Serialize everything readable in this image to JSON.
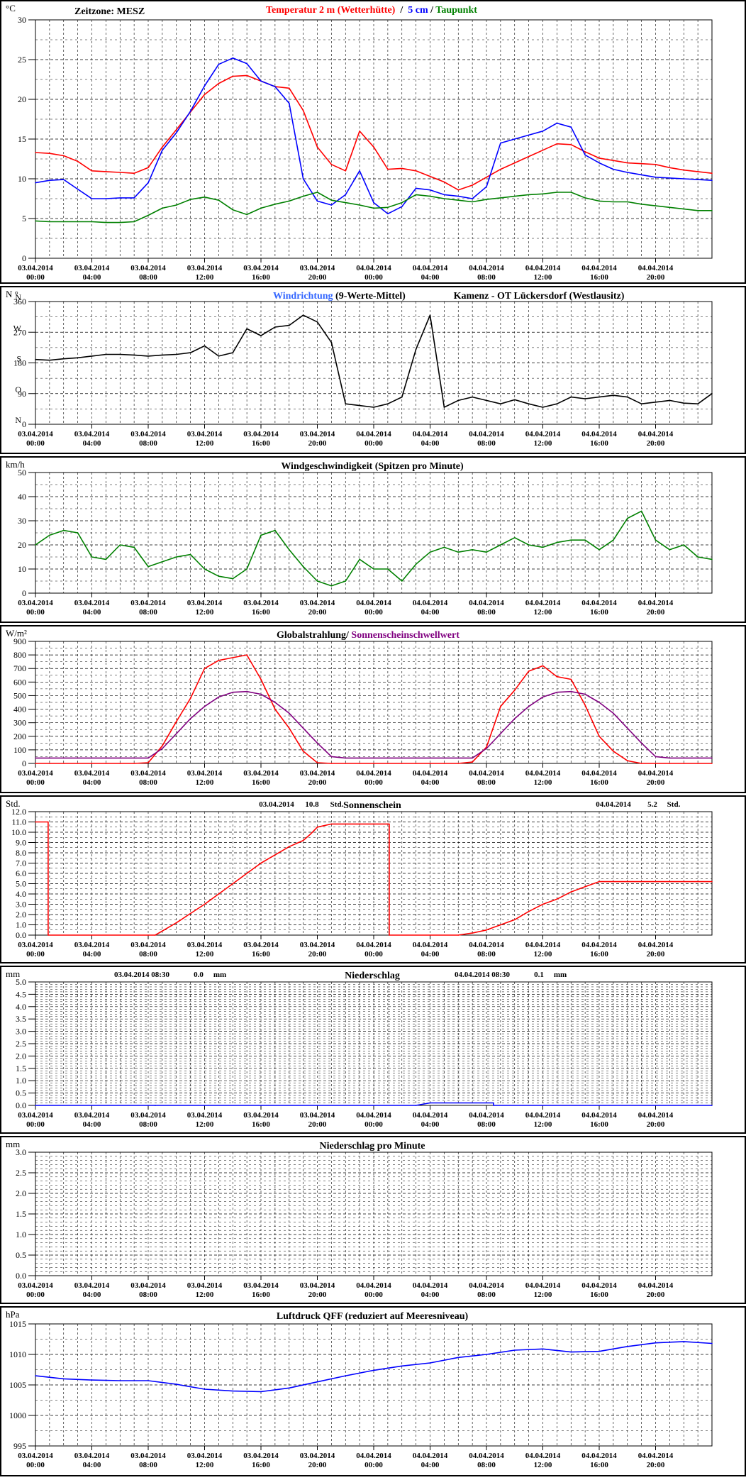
{
  "colors": {
    "temp2m": "#ff0000",
    "temp5cm": "#0000ff",
    "dewpoint": "#008000",
    "wind_dir_avg": "#0000ff",
    "wind_dir_raw": "#3399ff",
    "wind_dir_mean": "#000000",
    "wind_speed": "#008000",
    "radiation": "#ff0000",
    "sunshine_threshold": "#800080",
    "sunshine": "#ff0000",
    "precip": "#0000ff",
    "pressure": "#0000ff",
    "grid": "#000000",
    "frame": "#000000"
  },
  "x_axis": {
    "tick_labels": [
      {
        "date": "03.04.2014",
        "time": "00:00"
      },
      {
        "date": "03.04.2014",
        "time": "04:00"
      },
      {
        "date": "03.04.2014",
        "time": "08:00"
      },
      {
        "date": "03.04.2014",
        "time": "12:00"
      },
      {
        "date": "03.04.2014",
        "time": "16:00"
      },
      {
        "date": "03.04.2014",
        "time": "20:00"
      },
      {
        "date": "04.04.2014",
        "time": "00:00"
      },
      {
        "date": "04.04.2014",
        "time": "04:00"
      },
      {
        "date": "04.04.2014",
        "time": "08:00"
      },
      {
        "date": "04.04.2014",
        "time": "12:00"
      },
      {
        "date": "04.04.2014",
        "time": "16:00"
      },
      {
        "date": "04.04.2014",
        "time": "20:00"
      }
    ]
  },
  "chart_data": [
    {
      "id": "temp",
      "type": "line",
      "unit": "°C",
      "header_left": "Zeitzone: MESZ",
      "title_parts": [
        {
          "text": "Temperatur 2 m (Wetterhütte)",
          "color": "#ff0000"
        },
        {
          "text": "  /  ",
          "color": "#000000"
        },
        {
          "text": "5 cm",
          "color": "#0000ff"
        },
        {
          "text": " / ",
          "color": "#000000"
        },
        {
          "text": "Taupunkt",
          "color": "#008000"
        }
      ],
      "ylim": [
        0,
        30
      ],
      "y_ticks": [
        0,
        5,
        10,
        15,
        20,
        25,
        30
      ],
      "grid": true,
      "x_hours": [
        0,
        1,
        2,
        3,
        4,
        5,
        6,
        7,
        8,
        9,
        10,
        11,
        12,
        13,
        14,
        15,
        16,
        17,
        18,
        19,
        20,
        21,
        22,
        23,
        24,
        25,
        26,
        27,
        28,
        29,
        30,
        31,
        32,
        33,
        34,
        35,
        36,
        37,
        38,
        39,
        40,
        41,
        42,
        43,
        44,
        45,
        46,
        47,
        48
      ],
      "series": [
        {
          "name": "Temperatur 2 m (Wetterhütte)",
          "color": "#ff0000",
          "values": [
            13.3,
            13.2,
            12.9,
            12.2,
            11.0,
            10.9,
            10.8,
            10.7,
            11.4,
            14.0,
            16.2,
            18.4,
            20.6,
            22.0,
            22.9,
            23.0,
            22.3,
            21.6,
            21.4,
            18.6,
            14.0,
            11.8,
            11.0,
            16.0,
            14.0,
            11.2,
            11.3,
            11.0,
            10.3,
            9.6,
            8.6,
            9.2,
            10.2,
            11.2,
            12.0,
            12.8,
            13.6,
            14.4,
            14.3,
            13.4,
            12.6,
            12.3,
            12.0,
            11.9,
            11.8,
            11.4,
            11.1,
            10.9,
            10.7
          ]
        },
        {
          "name": "5 cm",
          "color": "#0000ff",
          "values": [
            9.5,
            9.8,
            9.9,
            8.7,
            7.5,
            7.5,
            7.6,
            7.6,
            9.5,
            13.6,
            15.8,
            18.5,
            21.7,
            24.4,
            25.2,
            24.5,
            22.3,
            21.6,
            19.5,
            10.0,
            7.2,
            6.7,
            8.0,
            11.0,
            7.0,
            5.6,
            6.5,
            8.8,
            8.6,
            8.0,
            7.8,
            7.5,
            9.0,
            14.5,
            15.0,
            15.5,
            16.0,
            17.0,
            16.5,
            13.0,
            12.0,
            11.2,
            10.8,
            10.5,
            10.2,
            10.1,
            10.0,
            9.9,
            9.8
          ]
        },
        {
          "name": "Taupunkt",
          "color": "#008000",
          "values": [
            4.7,
            4.6,
            4.6,
            4.6,
            4.6,
            4.5,
            4.5,
            4.6,
            5.4,
            6.3,
            6.7,
            7.4,
            7.7,
            7.3,
            6.1,
            5.5,
            6.3,
            6.8,
            7.2,
            7.8,
            8.3,
            7.3,
            7.0,
            6.7,
            6.3,
            6.4,
            7.0,
            8.0,
            7.8,
            7.5,
            7.3,
            7.1,
            7.4,
            7.6,
            7.8,
            8.0,
            8.1,
            8.3,
            8.3,
            7.6,
            7.2,
            7.1,
            7.1,
            6.8,
            6.6,
            6.4,
            6.2,
            6.0,
            6.0
          ]
        }
      ]
    },
    {
      "id": "winddir",
      "type": "line",
      "unit": "N °",
      "title_parts": [
        {
          "text": "Windrichtung",
          "color": "#3366ff"
        },
        {
          "text": " (9-Werte-Mittel)",
          "color": "#000000"
        }
      ],
      "subtitle": "Kamenz - OT Lückersdorf (Westlausitz)",
      "ylim": [
        0,
        360
      ],
      "y_ticks": [
        0,
        90,
        180,
        270,
        360
      ],
      "y_letters": [
        {
          "value": 360,
          "text": "N"
        },
        {
          "value": 270,
          "text": "W"
        },
        {
          "value": 180,
          "text": "S"
        },
        {
          "value": 90,
          "text": "O"
        },
        {
          "value": 0,
          "text": "N"
        }
      ],
      "grid": true,
      "x_hours": [
        0,
        1,
        2,
        3,
        4,
        5,
        6,
        7,
        8,
        9,
        10,
        11,
        12,
        13,
        14,
        15,
        16,
        17,
        18,
        19,
        20,
        21,
        22,
        23,
        24,
        25,
        26,
        27,
        28,
        29,
        30,
        31,
        32,
        33,
        34,
        35,
        36,
        37,
        38,
        39,
        40,
        41,
        42,
        43,
        44,
        45,
        46,
        47,
        48
      ],
      "series": [
        {
          "name": "Windrichtung",
          "color": "#000000",
          "values": [
            190,
            188,
            192,
            195,
            200,
            205,
            205,
            203,
            200,
            203,
            205,
            210,
            230,
            200,
            210,
            280,
            260,
            285,
            290,
            320,
            300,
            240,
            60,
            55,
            50,
            60,
            80,
            220,
            320,
            50,
            70,
            80,
            70,
            60,
            72,
            60,
            50,
            60,
            80,
            75,
            80,
            85,
            80,
            60,
            65,
            70,
            62,
            60,
            90
          ]
        }
      ]
    },
    {
      "id": "windspeed",
      "type": "line",
      "unit": "km/h",
      "title": "Windgeschwindigkeit (Spitzen pro Minute)",
      "ylim": [
        0,
        50
      ],
      "y_ticks": [
        0,
        10,
        20,
        30,
        40,
        50
      ],
      "grid": true,
      "x_hours": [
        0,
        1,
        2,
        3,
        4,
        5,
        6,
        7,
        8,
        9,
        10,
        11,
        12,
        13,
        14,
        15,
        16,
        17,
        18,
        19,
        20,
        21,
        22,
        23,
        24,
        25,
        26,
        27,
        28,
        29,
        30,
        31,
        32,
        33,
        34,
        35,
        36,
        37,
        38,
        39,
        40,
        41,
        42,
        43,
        44,
        45,
        46,
        47,
        48
      ],
      "series": [
        {
          "name": "Windgeschwindigkeit",
          "color": "#008000",
          "values": [
            20,
            24,
            26,
            25,
            15,
            14,
            20,
            19,
            11,
            13,
            15,
            16,
            10,
            7,
            6,
            10,
            24,
            26,
            18,
            11,
            5,
            3,
            5,
            14,
            10,
            10,
            5,
            12,
            17,
            19,
            17,
            18,
            17,
            20,
            23,
            20,
            19,
            21,
            22,
            22,
            18,
            22,
            31,
            34,
            22,
            18,
            20,
            15,
            14
          ]
        }
      ]
    },
    {
      "id": "radiation",
      "type": "line",
      "unit": "W/m²",
      "title_parts": [
        {
          "text": "Globalstrahlung/ ",
          "color": "#000000"
        },
        {
          "text": "Sonnenscheinschwellwert",
          "color": "#800080"
        }
      ],
      "ylim": [
        0,
        900
      ],
      "y_ticks": [
        0,
        100,
        200,
        300,
        400,
        500,
        600,
        700,
        800,
        900
      ],
      "grid": true,
      "x_hours": [
        0,
        1,
        2,
        3,
        4,
        5,
        6,
        7,
        8,
        9,
        10,
        11,
        12,
        13,
        14,
        15,
        16,
        17,
        18,
        19,
        20,
        21,
        22,
        23,
        24,
        25,
        26,
        27,
        28,
        29,
        30,
        31,
        32,
        33,
        34,
        35,
        36,
        37,
        38,
        39,
        40,
        41,
        42,
        43,
        44,
        45,
        46,
        47,
        48
      ],
      "series": [
        {
          "name": "Globalstrahlung",
          "color": "#ff0000",
          "values": [
            0,
            0,
            0,
            0,
            0,
            0,
            0,
            0,
            5,
            130,
            310,
            480,
            700,
            760,
            780,
            800,
            620,
            400,
            260,
            90,
            5,
            0,
            0,
            0,
            0,
            0,
            0,
            0,
            0,
            0,
            0,
            10,
            120,
            420,
            540,
            680,
            720,
            640,
            620,
            430,
            200,
            90,
            20,
            0,
            0,
            0,
            0,
            0,
            0
          ]
        },
        {
          "name": "Sonnenscheinschwellwert",
          "color": "#800080",
          "values": [
            40,
            40,
            40,
            40,
            40,
            40,
            40,
            40,
            40,
            110,
            220,
            330,
            420,
            490,
            525,
            530,
            510,
            450,
            370,
            260,
            150,
            50,
            40,
            40,
            40,
            40,
            40,
            40,
            40,
            40,
            40,
            40,
            110,
            220,
            330,
            420,
            490,
            525,
            530,
            510,
            450,
            370,
            260,
            150,
            50,
            40,
            40,
            40,
            40
          ]
        }
      ]
    },
    {
      "id": "sunshine",
      "type": "line",
      "unit": "Std.",
      "title": "Sonnenschein",
      "summary": [
        {
          "date": "03.04.2014",
          "value": "10.8",
          "unit": "Std."
        },
        {
          "date": "04.04.2014",
          "value": "5.2",
          "unit": "Std."
        }
      ],
      "ylim": [
        0,
        12
      ],
      "y_ticks": [
        0.0,
        1.0,
        2.0,
        3.0,
        4.0,
        5.0,
        6.0,
        7.0,
        8.0,
        9.0,
        10.0,
        11.0,
        12.0
      ],
      "grid": true,
      "x_hours": [
        0,
        0.9,
        0.9,
        8.5,
        9,
        10,
        11,
        12,
        13,
        14,
        15,
        16,
        17,
        18,
        19,
        19.5,
        20,
        21,
        22,
        23,
        24,
        25,
        25.1,
        25.1,
        30,
        31,
        32,
        33,
        34,
        35,
        36,
        37,
        38,
        39,
        40,
        41,
        42,
        43,
        44,
        45,
        46,
        47,
        48
      ],
      "series": [
        {
          "name": "Sonnenschein",
          "color": "#ff0000",
          "values": [
            11.0,
            11.0,
            0.0,
            0.0,
            0.4,
            1.2,
            2.1,
            3.0,
            4.0,
            5.0,
            6.0,
            7.0,
            7.8,
            8.6,
            9.2,
            9.8,
            10.5,
            10.8,
            10.8,
            10.8,
            10.8,
            10.8,
            10.8,
            0.0,
            0.0,
            0.2,
            0.5,
            1.0,
            1.5,
            2.3,
            3.0,
            3.5,
            4.2,
            4.7,
            5.2,
            5.2,
            5.2,
            5.2,
            5.2,
            5.2,
            5.2,
            5.2,
            5.2
          ]
        }
      ]
    },
    {
      "id": "precip",
      "type": "line",
      "unit": "mm",
      "title": "Niederschlag",
      "summary": [
        {
          "date": "03.04.2014 08:30",
          "value": "0.0",
          "unit": "mm"
        },
        {
          "date": "04.04.2014 08:30",
          "value": "0.1",
          "unit": "mm"
        }
      ],
      "ylim": [
        0,
        5
      ],
      "y_ticks": [
        0.0,
        0.5,
        1.0,
        1.5,
        2.0,
        2.5,
        3.0,
        3.5,
        4.0,
        4.5,
        5.0
      ],
      "grid": true,
      "x_hours": [
        0,
        8.5,
        8.5,
        27,
        28,
        32.5,
        32.5,
        48
      ],
      "series": [
        {
          "name": "Niederschlag",
          "color": "#0000ff",
          "values": [
            0.0,
            0.0,
            0.0,
            0.0,
            0.1,
            0.1,
            0.0,
            0.0
          ]
        }
      ]
    },
    {
      "id": "precip_min",
      "type": "line",
      "unit": "mm",
      "title": "Niederschlag pro Minute",
      "ylim": [
        0,
        3
      ],
      "y_ticks": [
        0.0,
        0.5,
        1.0,
        1.5,
        2.0,
        2.5,
        3.0
      ],
      "grid": true,
      "x_hours": [],
      "series": []
    },
    {
      "id": "pressure",
      "type": "line",
      "unit": "hPa",
      "title": "Luftdruck QFF (reduziert auf Meeresniveau)",
      "ylim": [
        995,
        1015
      ],
      "y_ticks": [
        995,
        1000,
        1005,
        1010,
        1015
      ],
      "grid": true,
      "x_hours": [
        0,
        2,
        4,
        6,
        8,
        10,
        12,
        14,
        16,
        18,
        20,
        22,
        24,
        26,
        28,
        30,
        32,
        34,
        36,
        38,
        40,
        42,
        44,
        46,
        48
      ],
      "series": [
        {
          "name": "Luftdruck QFF",
          "color": "#0000ff",
          "values": [
            1006.5,
            1006.0,
            1005.8,
            1005.7,
            1005.7,
            1005.1,
            1004.3,
            1004.0,
            1003.9,
            1004.5,
            1005.5,
            1006.5,
            1007.4,
            1008.1,
            1008.6,
            1009.5,
            1010.0,
            1010.7,
            1010.9,
            1010.4,
            1010.5,
            1011.3,
            1011.9,
            1012.1,
            1011.8
          ]
        }
      ]
    }
  ]
}
